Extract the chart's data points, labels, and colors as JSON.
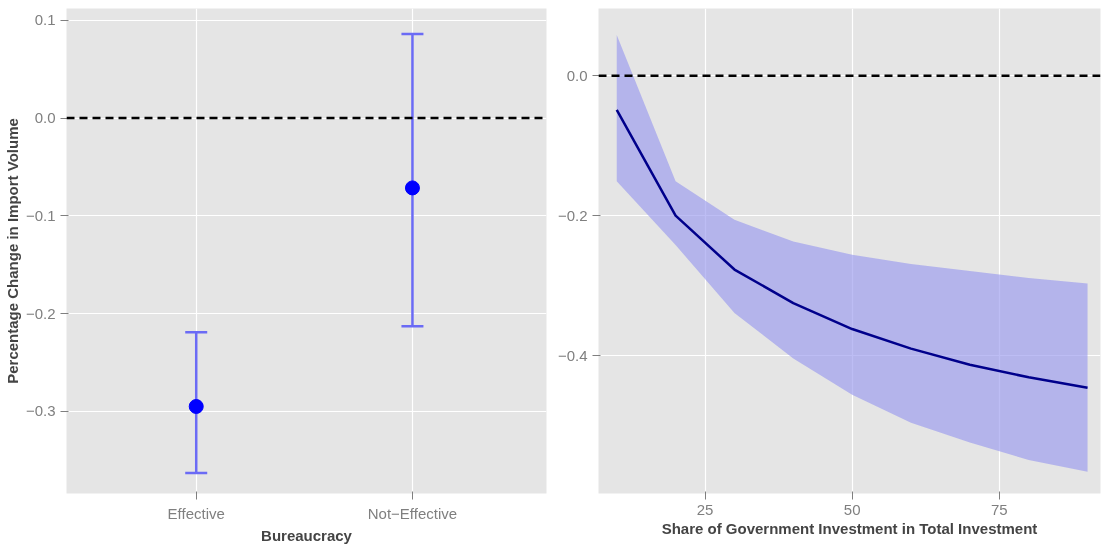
{
  "chart_data": [
    {
      "type": "scatter",
      "xlabel": "Bureaucracy",
      "ylabel": "Percentage Change in Import Volume",
      "categories": [
        "Effective",
        "Not−Effective"
      ],
      "series": [
        {
          "color": "#0000ff",
          "values": [
            -0.295,
            -0.0715
          ],
          "errors": [
            [
              -0.363,
              -0.219
            ],
            [
              -0.213,
              0.086
            ]
          ]
        }
      ],
      "ylim": [
        -0.384,
        0.112
      ],
      "yticks": [
        {
          "value": 0.1,
          "label": "0.1"
        },
        {
          "value": 0.0,
          "label": "0.0"
        },
        {
          "value": -0.1,
          "label": "−0.1"
        },
        {
          "value": -0.2,
          "label": "−0.2"
        },
        {
          "value": -0.3,
          "label": "−0.3"
        }
      ],
      "ref_lines": [
        {
          "axis": "y",
          "value": 0.0,
          "color": "#000000",
          "line_style": "dashed"
        }
      ],
      "grid": true,
      "marker": "circle"
    },
    {
      "type": "line",
      "xlabel": "Share of Government Investment in Total Investment",
      "series": [
        {
          "color": "#00008b",
          "x": [
            10,
            20,
            30,
            40,
            50,
            60,
            70,
            80,
            90
          ],
          "values": [
            -0.049,
            -0.2,
            -0.277,
            -0.325,
            -0.362,
            -0.39,
            -0.413,
            -0.431,
            -0.446
          ],
          "upper": [
            0.058,
            -0.151,
            -0.206,
            -0.237,
            -0.256,
            -0.269,
            -0.279,
            -0.289,
            -0.297
          ],
          "lower": [
            -0.151,
            -0.242,
            -0.339,
            -0.404,
            -0.456,
            -0.496,
            -0.524,
            -0.549,
            -0.566
          ]
        }
      ],
      "xlim": [
        6.9,
        92.2
      ],
      "xticks": [
        25,
        50,
        75
      ],
      "ylim": [
        -0.597,
        0.096
      ],
      "yticks": [
        {
          "value": 0.0,
          "label": "0.0"
        },
        {
          "value": -0.2,
          "label": "−0.2"
        },
        {
          "value": -0.4,
          "label": "−0.4"
        }
      ],
      "ref_lines": [
        {
          "axis": "y",
          "value": 0.0,
          "color": "#000000",
          "line_style": "dashed"
        }
      ],
      "grid": true,
      "line_style": "solid"
    }
  ]
}
